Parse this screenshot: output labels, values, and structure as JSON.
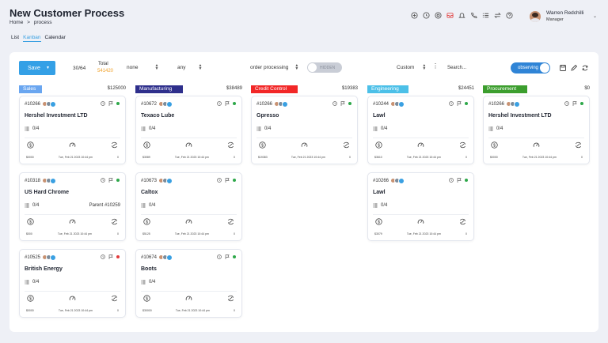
{
  "page": {
    "title": "New Customer Process",
    "breadcrumb": [
      "Home",
      ">",
      "process"
    ]
  },
  "topbar": {
    "icons": [
      "plus-circle-icon",
      "clock-icon",
      "target-icon",
      "inbox-icon",
      "bell-icon",
      "phone-icon",
      "list-icon",
      "swap-icon",
      "help-icon"
    ],
    "user": {
      "name": "Warren Redchilli",
      "role": "Manager"
    }
  },
  "view_tabs": [
    {
      "label": "List"
    },
    {
      "label": "Kanban",
      "active": true
    },
    {
      "label": "Calendar"
    }
  ],
  "toolbar": {
    "save_label": "Save",
    "count": "30/64",
    "total_label": "Total",
    "total_value": "541420",
    "filter1": "none",
    "filter2": "any",
    "status": "order processing",
    "toggle_off_label": "HIDDEN",
    "sort": "Custom",
    "search_placeholder": "Search...",
    "observing_label": "observing"
  },
  "colors": {
    "accent": "#34a0e6",
    "sales": "#6aa6f0",
    "manufacturing": "#2e2f8c",
    "credit": "#f22727",
    "engineering": "#4cc0e8",
    "procurement": "#3c9e2e",
    "green": "#2ea84a",
    "red": "#e23b3b"
  },
  "columns": [
    {
      "name": "Sales",
      "amount": "$125000",
      "cards": [
        {
          "id": "#10266",
          "title": "Hershel Investment LTD",
          "tasks": "0/4",
          "parent": "",
          "value": "$0000",
          "date": "Tue, Feb 21 2023 10:44 pm",
          "count": "0",
          "status": "green"
        },
        {
          "id": "#10318",
          "title": "US Hard Chrome",
          "tasks": "0/4",
          "parent": "Parent #10259",
          "value": "$000",
          "date": "Tue, Feb 21 2023 10:44 pm",
          "count": "0",
          "status": "green"
        },
        {
          "id": "#10525",
          "title": "British Energy",
          "tasks": "0/4",
          "parent": "",
          "value": "$0000",
          "date": "Tue, Feb 21 2023 10:44 pm",
          "count": "0",
          "status": "red"
        }
      ]
    },
    {
      "name": "Manufacturing",
      "amount": "$38489",
      "cards": [
        {
          "id": "#10672",
          "title": "Texaco Lube",
          "tasks": "0/4",
          "parent": "",
          "value": "$3089",
          "date": "Tue, Feb 21 2023 10:44 pm",
          "count": "0",
          "status": "green"
        },
        {
          "id": "#10673",
          "title": "Caltox",
          "tasks": "0/4",
          "parent": "",
          "value": "$5125",
          "date": "Tue, Feb 21 2023 10:44 pm",
          "count": "0",
          "status": "green"
        },
        {
          "id": "#10674",
          "title": "Boots",
          "tasks": "0/4",
          "parent": "",
          "value": "$30000",
          "date": "Tue, Feb 21 2023 10:44 pm",
          "count": "0",
          "status": "green"
        }
      ]
    },
    {
      "name": "Credit Control",
      "amount": "$19383",
      "cards": [
        {
          "id": "#10266",
          "title": "Gpresso",
          "tasks": "0/4",
          "parent": "",
          "value": "$19383",
          "date": "Tue, Feb 21 2023 10:44 pm",
          "count": "0",
          "status": "green"
        }
      ]
    },
    {
      "name": "Engineering",
      "amount": "$24451",
      "cards": [
        {
          "id": "#10244",
          "title": "Lawl",
          "tasks": "0/4",
          "parent": "",
          "value": "$3610",
          "date": "Tue, Feb 21 2023 10:44 pm",
          "count": "0",
          "status": "green"
        },
        {
          "id": "#10266",
          "title": "Lawl",
          "tasks": "0/4",
          "parent": "",
          "value": "$3079",
          "date": "Tue, Feb 21 2023 10:44 pm",
          "count": "0",
          "status": "green"
        }
      ]
    },
    {
      "name": "Procurement",
      "amount": "$0",
      "cards": [
        {
          "id": "#10266",
          "title": "Hershel Investment LTD",
          "tasks": "0/4",
          "parent": "",
          "value": "$0000",
          "date": "Tue, Feb 21 2023 10:44 pm",
          "count": "0",
          "status": "green"
        }
      ]
    }
  ]
}
